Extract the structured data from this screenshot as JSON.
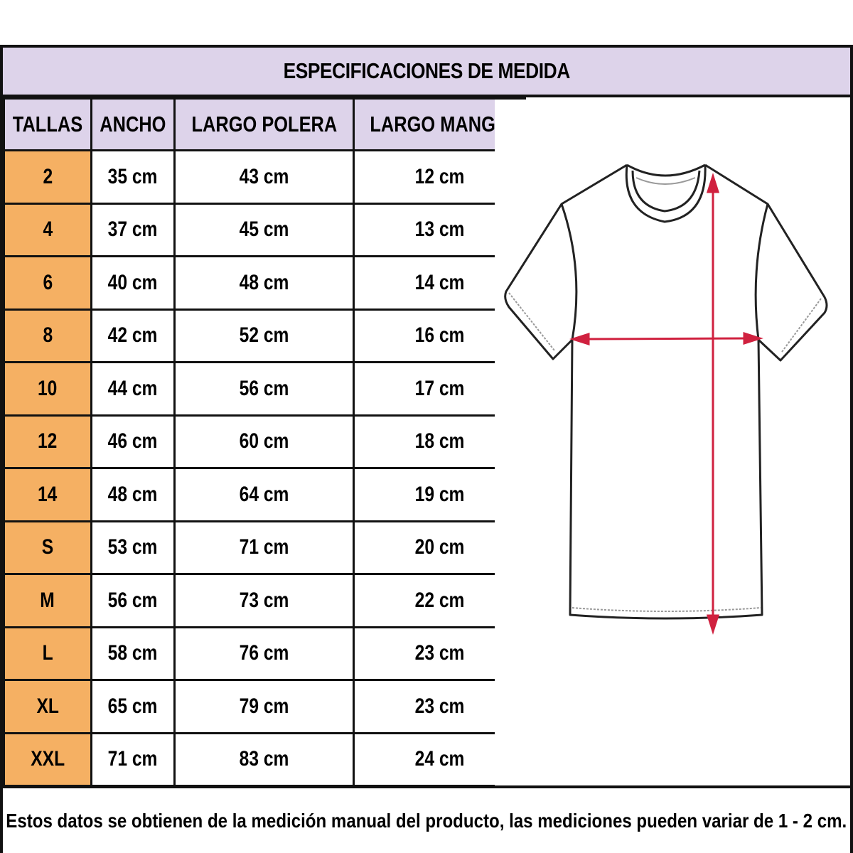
{
  "title": "ESPECIFICACIONES DE MEDIDA",
  "headers": [
    "TALLAS",
    "ANCHO",
    "LARGO POLERA",
    "LARGO MANGA"
  ],
  "rows": [
    [
      "2",
      "35 cm",
      "43 cm",
      "12 cm"
    ],
    [
      "4",
      "37 cm",
      "45 cm",
      "13 cm"
    ],
    [
      "6",
      "40 cm",
      "48 cm",
      "14 cm"
    ],
    [
      "8",
      "42 cm",
      "52 cm",
      "16 cm"
    ],
    [
      "10",
      "44 cm",
      "56 cm",
      "17 cm"
    ],
    [
      "12",
      "46 cm",
      "60 cm",
      "18 cm"
    ],
    [
      "14",
      "48 cm",
      "64 cm",
      "19 cm"
    ],
    [
      "S",
      "53 cm",
      "71 cm",
      "20 cm"
    ],
    [
      "M",
      "56 cm",
      "73 cm",
      "22 cm"
    ],
    [
      "L",
      "58 cm",
      "76 cm",
      "23 cm"
    ],
    [
      "XL",
      "65 cm",
      "79 cm",
      "23 cm"
    ],
    [
      "XXL",
      "71 cm",
      "83 cm",
      "24 cm"
    ]
  ],
  "footer": "Estos datos se obtienen de la medición manual del producto, las mediciones pueden variar de 1 - 2 cm.",
  "colors": {
    "header_bg": "#ddd3ea",
    "size_bg": "#f5b063",
    "arrow": "#d0213f"
  },
  "diagram": {
    "icon": "t-shirt-measurement-icon"
  }
}
